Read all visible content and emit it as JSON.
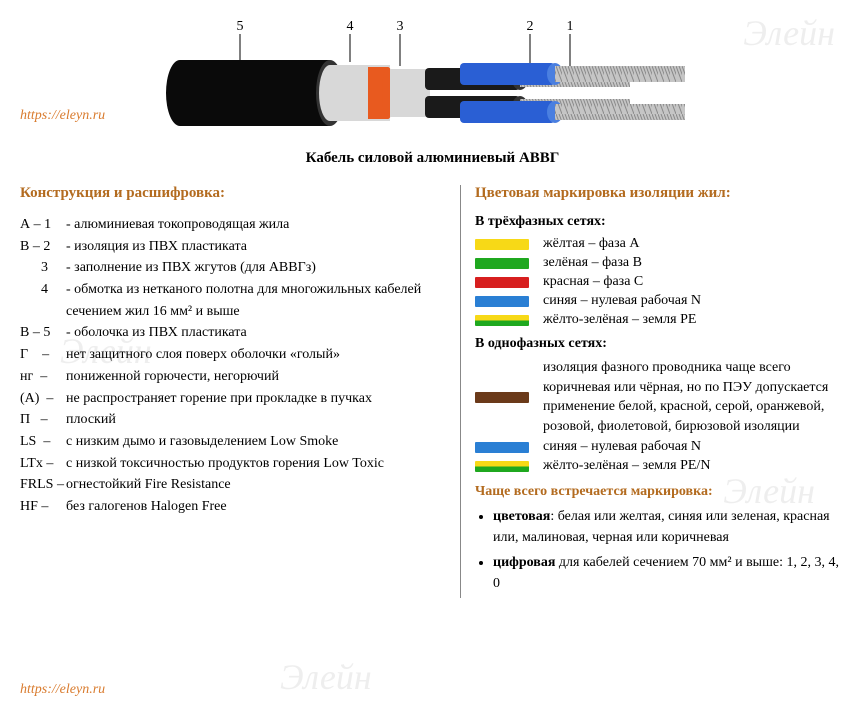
{
  "site_url": "https://eleyn.ru",
  "cable_caption": "Кабель силовой алюминиевый АВВГ",
  "diagram": {
    "labels": [
      "5",
      "4",
      "3",
      "2",
      "1"
    ],
    "outer_sheath_color": "#0a0a0a",
    "inner_fill_color": "#d8d8d8",
    "orange_layer": "#e85a1f",
    "core_insulation_blue": "#2a5fd4",
    "core_insulation_black": "#1a1a1a",
    "conductor_color": "#c5c5c5"
  },
  "left": {
    "title": "Конструкция и расшифровка:",
    "rows": [
      {
        "label": "А – 1",
        "text": "- алюминиевая токопроводящая жила"
      },
      {
        "label": "В – 2",
        "text": "- изоляция из ПВХ пластиката"
      },
      {
        "label": "      3",
        "text": "- заполнение из ПВХ жгутов (для АВВГз)"
      },
      {
        "label": "      4",
        "text": "- обмотка из нетканого полотна для многожильных кабелей сечением жил 16 мм² и выше"
      },
      {
        "label": "В – 5",
        "text": "- оболочка из ПВХ пластиката"
      },
      {
        "label": "Г    –",
        "text": "нет защитного слоя поверх оболочки «голый»"
      },
      {
        "label": "нг  –",
        "text": "пониженной горючести, негорючий"
      },
      {
        "label": "(А)  –",
        "text": "не распространяет горение при прокладке в пучках"
      },
      {
        "label": "П   –",
        "text": "плоский"
      },
      {
        "label": "LS  –",
        "text": "с низким дымо и газовыделением  Low Smoke"
      },
      {
        "label": "LTx –",
        "text": "с низкой токсичностью продуктов горения Low Toxic"
      },
      {
        "label": "FRLS –",
        "text": "огнестойкий Fire Resistance"
      },
      {
        "label": "HF –",
        "text": "без галогенов Halogen Free"
      }
    ]
  },
  "right": {
    "title": "Цветовая маркировка изоляции жил:",
    "three_phase_title": "В трёхфазных сетях:",
    "three_phase": [
      {
        "color": "#f7d917",
        "label": "жёлтая – фаза А"
      },
      {
        "color": "#1fa81f",
        "label": "зелёная – фаза В"
      },
      {
        "color": "#d71f1f",
        "label": "красная – фаза С"
      },
      {
        "color": "#2a7fd4",
        "label": "синяя – нулевая рабочая N"
      },
      {
        "color": "yg",
        "label": "жёлто-зелёная – земля РЕ"
      }
    ],
    "single_phase_title": "В однофазных сетях:",
    "single_phase_intro_color": "#6b3a1a",
    "single_phase_text": "изоляция фазного проводника чаще всего коричневая или чёрная, но по ПЭУ допускается применение белой, красной, серой, оранжевой, розовой, фиолетовой, бирюзовой изоляции",
    "single_phase_rows": [
      {
        "color": "#2a7fd4",
        "label": "синяя – нулевая рабочая N"
      },
      {
        "color": "yg",
        "label": "жёлто-зелёная – земля РЕ/N"
      }
    ],
    "common_title": "Чаще всего встречается маркировка:",
    "common_items": [
      {
        "bold": "цветовая",
        "rest": ": белая или желтая, синяя или зеленая, красная или, малиновая, черная или коричневая"
      },
      {
        "bold": "цифровая",
        "rest": " для кабелей сечением  70 мм²  и выше: 1, 2, 3, 4, 0"
      }
    ]
  }
}
